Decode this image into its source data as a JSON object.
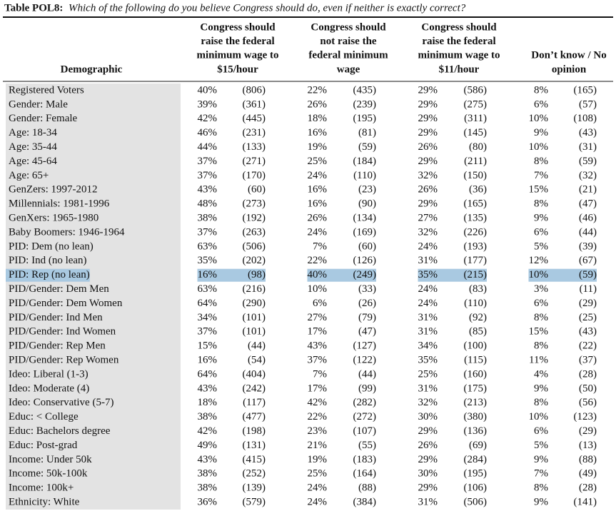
{
  "title": {
    "label": "Table POL8:",
    "question": "Which of the following do you believe Congress should do, even if neither is exactly correct?"
  },
  "table": {
    "header": [
      [
        "Demographic"
      ],
      [
        "Congress should",
        "raise the federal",
        "minimum wage to",
        "$15/hour"
      ],
      [
        "Congress should",
        "not raise the",
        "federal minimum",
        "wage"
      ],
      [
        "Congress should",
        "raise the federal",
        "minimum wage to",
        "$11/hour"
      ],
      [
        "Don’t know / No",
        "opinion"
      ]
    ],
    "highlighted_row": 13,
    "rows": [
      [
        "Registered Voters",
        "40%",
        "(806)",
        "22%",
        "(435)",
        "29%",
        "(586)",
        "8%",
        "(165)"
      ],
      [
        "Gender: Male",
        "39%",
        "(361)",
        "26%",
        "(239)",
        "29%",
        "(275)",
        "6%",
        "(57)"
      ],
      [
        "Gender: Female",
        "42%",
        "(445)",
        "18%",
        "(195)",
        "29%",
        "(311)",
        "10%",
        "(108)"
      ],
      [
        "Age: 18-34",
        "46%",
        "(231)",
        "16%",
        "(81)",
        "29%",
        "(145)",
        "9%",
        "(43)"
      ],
      [
        "Age: 35-44",
        "44%",
        "(133)",
        "19%",
        "(59)",
        "26%",
        "(80)",
        "10%",
        "(31)"
      ],
      [
        "Age: 45-64",
        "37%",
        "(271)",
        "25%",
        "(184)",
        "29%",
        "(211)",
        "8%",
        "(59)"
      ],
      [
        "Age: 65+",
        "37%",
        "(170)",
        "24%",
        "(110)",
        "32%",
        "(150)",
        "7%",
        "(32)"
      ],
      [
        "GenZers: 1997-2012",
        "43%",
        "(60)",
        "16%",
        "(23)",
        "26%",
        "(36)",
        "15%",
        "(21)"
      ],
      [
        "Millennials: 1981-1996",
        "48%",
        "(273)",
        "16%",
        "(90)",
        "29%",
        "(165)",
        "8%",
        "(47)"
      ],
      [
        "GenXers: 1965-1980",
        "38%",
        "(192)",
        "26%",
        "(134)",
        "27%",
        "(135)",
        "9%",
        "(46)"
      ],
      [
        "Baby Boomers: 1946-1964",
        "37%",
        "(263)",
        "24%",
        "(169)",
        "32%",
        "(226)",
        "6%",
        "(44)"
      ],
      [
        "PID: Dem (no lean)",
        "63%",
        "(506)",
        "7%",
        "(60)",
        "24%",
        "(193)",
        "5%",
        "(39)"
      ],
      [
        "PID: Ind (no lean)",
        "35%",
        "(202)",
        "22%",
        "(126)",
        "31%",
        "(177)",
        "12%",
        "(67)"
      ],
      [
        "PID: Rep (no lean)",
        "16%",
        "(98)",
        "40%",
        "(249)",
        "35%",
        "(215)",
        "10%",
        "(59)"
      ],
      [
        "PID/Gender: Dem Men",
        "63%",
        "(216)",
        "10%",
        "(33)",
        "24%",
        "(83)",
        "3%",
        "(11)"
      ],
      [
        "PID/Gender: Dem Women",
        "64%",
        "(290)",
        "6%",
        "(26)",
        "24%",
        "(110)",
        "6%",
        "(29)"
      ],
      [
        "PID/Gender: Ind Men",
        "34%",
        "(101)",
        "27%",
        "(79)",
        "31%",
        "(92)",
        "8%",
        "(25)"
      ],
      [
        "PID/Gender: Ind Women",
        "37%",
        "(101)",
        "17%",
        "(47)",
        "31%",
        "(85)",
        "15%",
        "(43)"
      ],
      [
        "PID/Gender: Rep Men",
        "15%",
        "(44)",
        "43%",
        "(127)",
        "34%",
        "(100)",
        "8%",
        "(22)"
      ],
      [
        "PID/Gender: Rep Women",
        "16%",
        "(54)",
        "37%",
        "(122)",
        "35%",
        "(115)",
        "11%",
        "(37)"
      ],
      [
        "Ideo: Liberal (1-3)",
        "64%",
        "(404)",
        "7%",
        "(44)",
        "25%",
        "(160)",
        "4%",
        "(28)"
      ],
      [
        "Ideo: Moderate (4)",
        "43%",
        "(242)",
        "17%",
        "(99)",
        "31%",
        "(175)",
        "9%",
        "(50)"
      ],
      [
        "Ideo: Conservative (5-7)",
        "18%",
        "(117)",
        "42%",
        "(282)",
        "32%",
        "(213)",
        "8%",
        "(56)"
      ],
      [
        "Educ: < College",
        "38%",
        "(477)",
        "22%",
        "(272)",
        "30%",
        "(380)",
        "10%",
        "(123)"
      ],
      [
        "Educ: Bachelors degree",
        "42%",
        "(198)",
        "23%",
        "(107)",
        "29%",
        "(136)",
        "6%",
        "(29)"
      ],
      [
        "Educ: Post-grad",
        "49%",
        "(131)",
        "21%",
        "(55)",
        "26%",
        "(69)",
        "5%",
        "(13)"
      ],
      [
        "Income: Under 50k",
        "43%",
        "(415)",
        "19%",
        "(183)",
        "29%",
        "(284)",
        "9%",
        "(88)"
      ],
      [
        "Income: 50k-100k",
        "38%",
        "(252)",
        "25%",
        "(164)",
        "30%",
        "(195)",
        "7%",
        "(49)"
      ],
      [
        "Income: 100k+",
        "38%",
        "(139)",
        "24%",
        "(88)",
        "29%",
        "(106)",
        "8%",
        "(28)"
      ],
      [
        "Ethnicity: White",
        "36%",
        "(579)",
        "24%",
        "(384)",
        "31%",
        "(506)",
        "9%",
        "(141)"
      ]
    ]
  }
}
